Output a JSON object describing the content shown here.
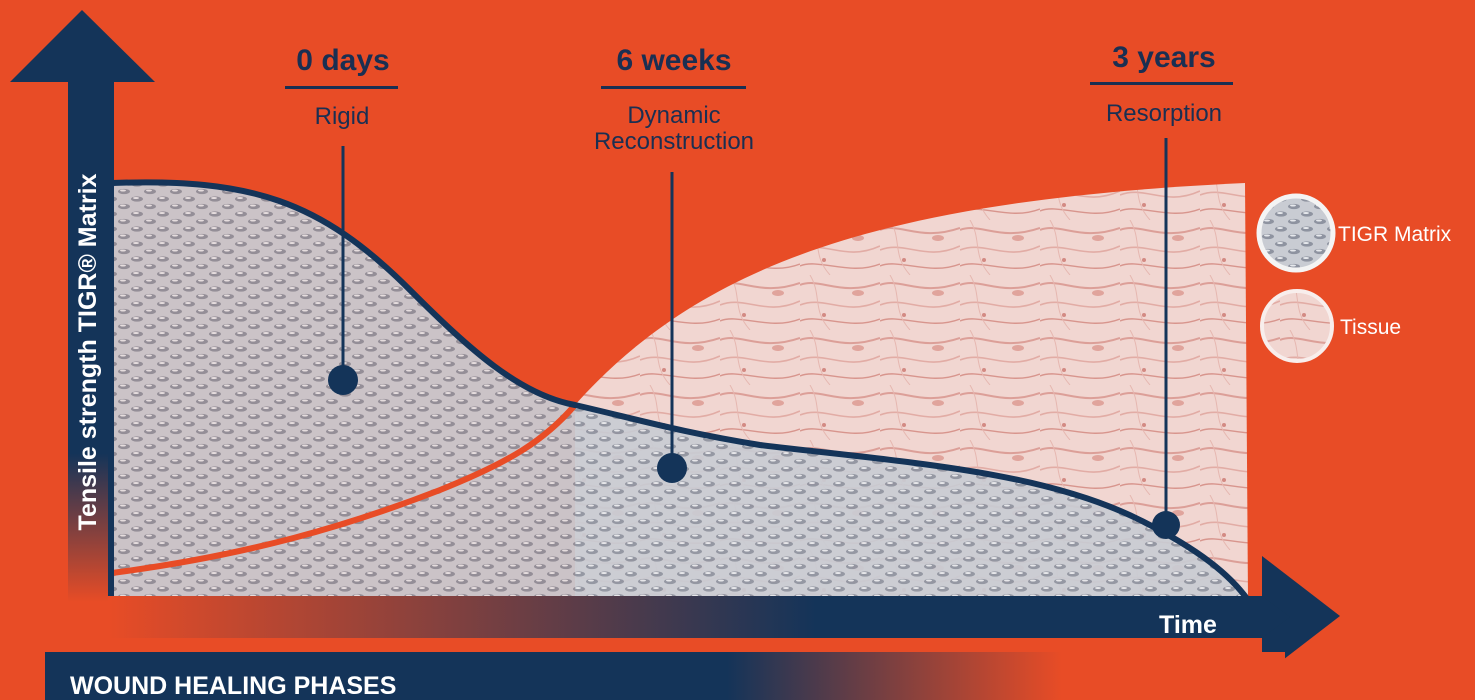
{
  "y_axis_label": "Tensile strength TIGR® Matrix",
  "x_axis_label": "Time",
  "bottom_bar_label": "WOUND HEALING PHASES",
  "phases": [
    {
      "time": "0 days",
      "description": [
        "Rigid"
      ]
    },
    {
      "time": "6 weeks",
      "description": [
        "Dynamic",
        "Reconstruction"
      ]
    },
    {
      "time": "3 years",
      "description": [
        "Resorption"
      ]
    }
  ],
  "legend": [
    {
      "label": "TIGR Matrix"
    },
    {
      "label": "Tissue"
    }
  ],
  "colors": {
    "background": "#e84c26",
    "navy": "#143459",
    "heading_text": "#1a2f52",
    "legend_text": "#ffffff",
    "tissue_curve": "#e84c26",
    "matrix_fill": "#b7bcc6",
    "tissue_fill": "#f1d3cd"
  }
}
